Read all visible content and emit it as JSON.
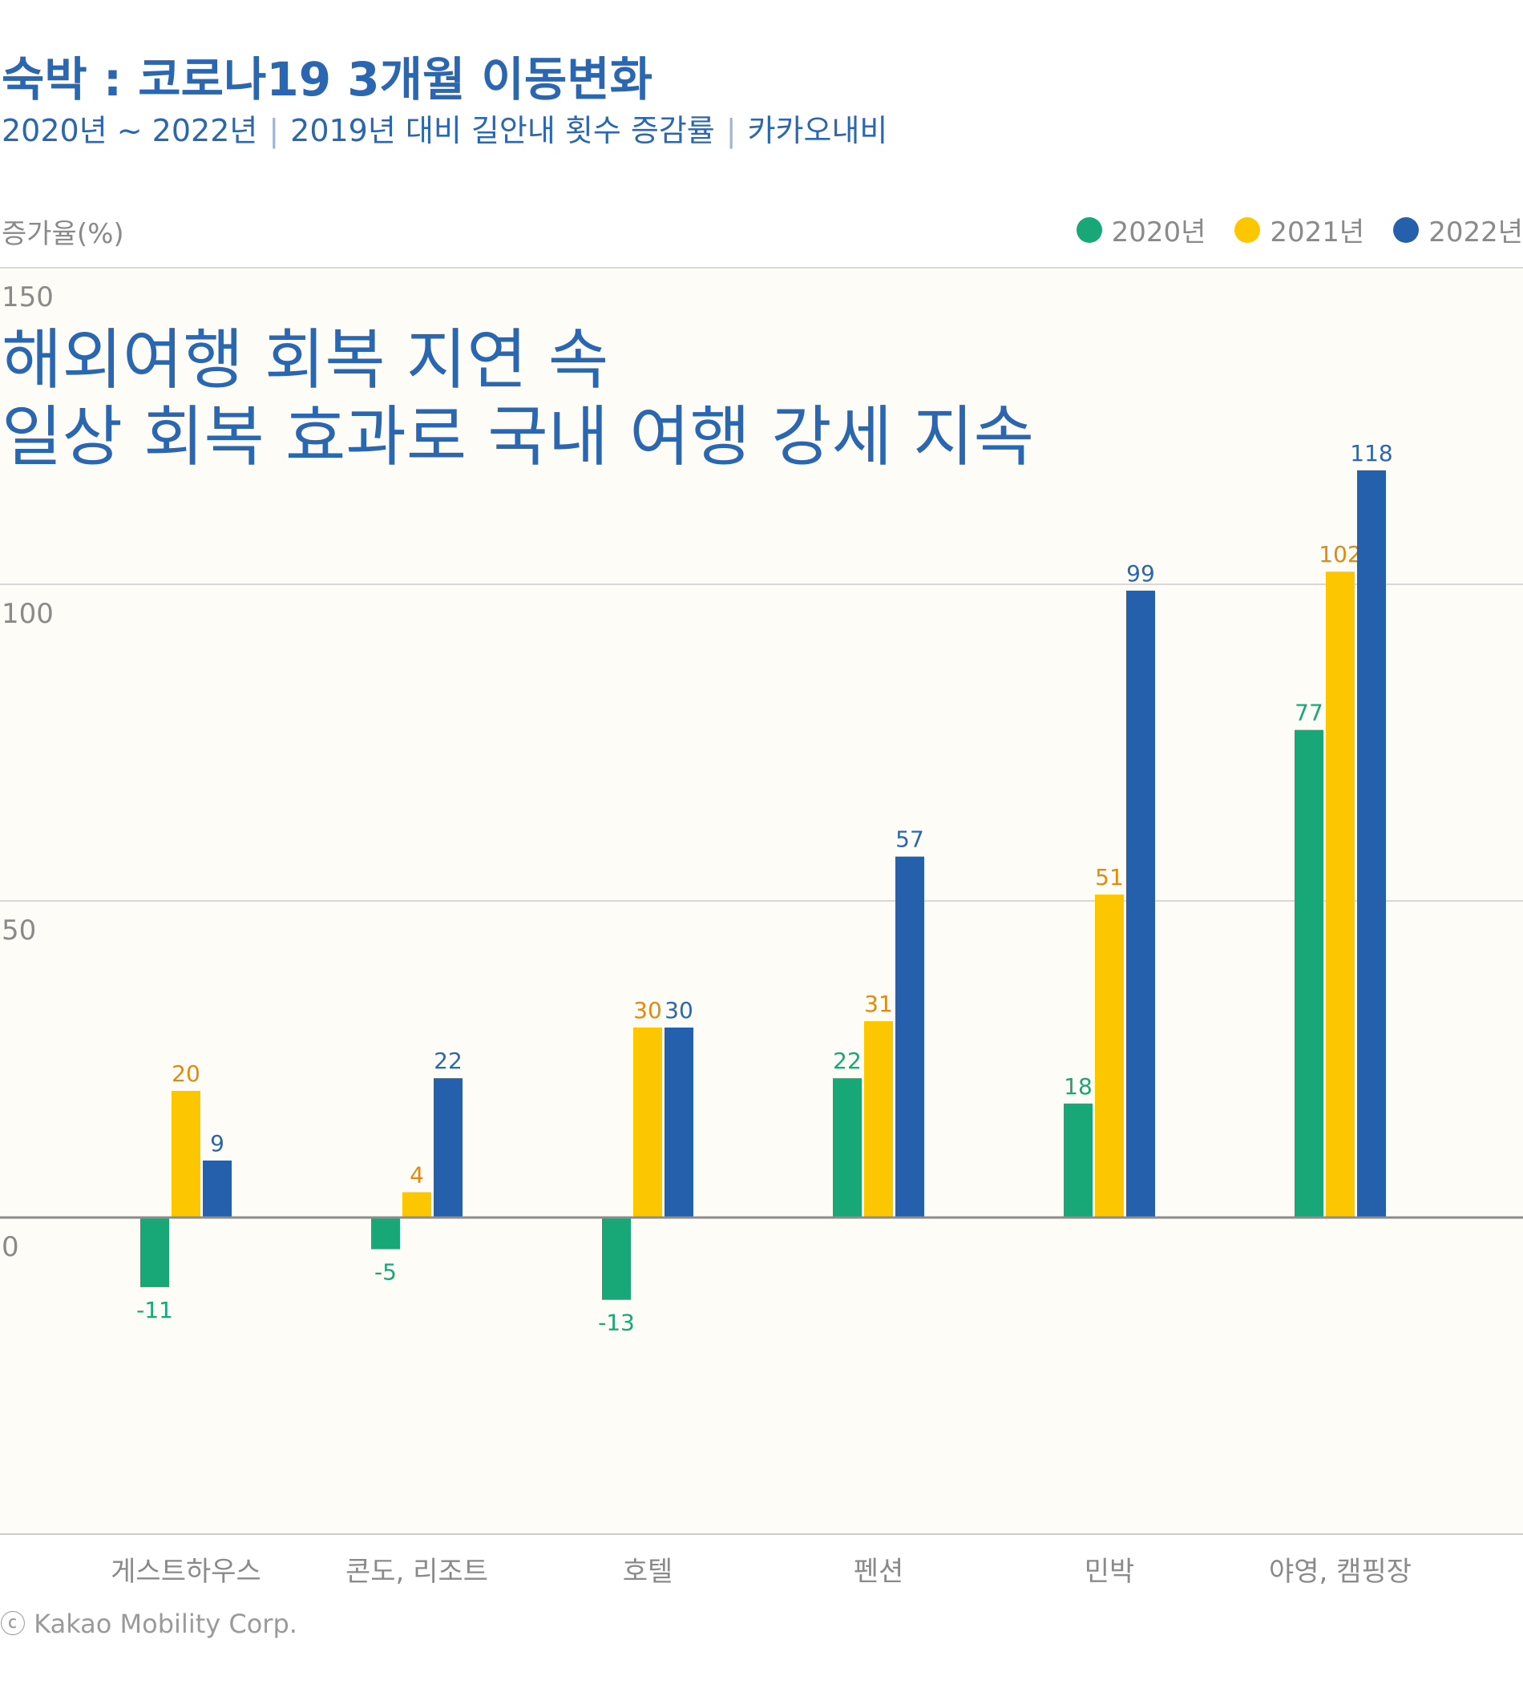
{
  "header": {
    "title": "숙박 : 코로나19 3개월 이동변화",
    "subtitle_parts": [
      "2020년 ~ 2022년",
      "2019년 대비 길안내 횟수 증감률",
      "카카오내비"
    ],
    "separator": "|"
  },
  "headline": {
    "line1": "해외여행 회복 지연 속",
    "line2": "일상 회복 효과로 국내 여행 강세 지속"
  },
  "footer": "ⓒ Kakao Mobility Corp.",
  "chart_data": {
    "type": "bar",
    "title": "숙박 : 코로나19 3개월 이동변화",
    "ylabel": "증가율(%)",
    "xlabel": "",
    "ylim": [
      -50,
      150
    ],
    "yticks": [
      0,
      50,
      100,
      150
    ],
    "grid": true,
    "legend_position": "top-right",
    "categories": [
      "게스트하우스",
      "콘도, 리조트",
      "호텔",
      "펜션",
      "민박",
      "야영, 캠핑장"
    ],
    "series": [
      {
        "name": "2020년",
        "color": "#18a776",
        "label_color": "#18a776",
        "values": [
          -11,
          -5,
          -13,
          22,
          18,
          77
        ]
      },
      {
        "name": "2021년",
        "color": "#fdc700",
        "label_color": "#e18a13",
        "values": [
          20,
          4,
          30,
          31,
          51,
          102
        ]
      },
      {
        "name": "2022년",
        "color": "#2460ac",
        "label_color": "#2b66b1",
        "values": [
          9,
          22,
          30,
          57,
          99,
          118
        ]
      }
    ]
  }
}
